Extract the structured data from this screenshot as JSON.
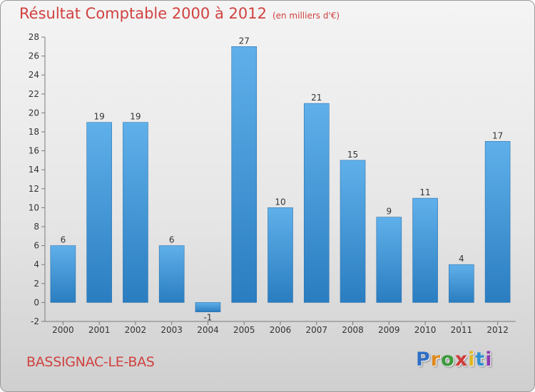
{
  "title": "Résultat Comptable 2000 à 2012",
  "subtitle": "(en milliers d'€)",
  "commune": "BASSIGNAC-LE-BAS",
  "logo": {
    "letters": [
      "P",
      "r",
      "o",
      "x",
      "i",
      "t",
      "i"
    ],
    "colors": [
      "#2f6fc4",
      "#e08a1e",
      "#3a9a3a",
      "#d03a3a",
      "#e0b81e",
      "#2f8fd0",
      "#8a3ab0"
    ]
  },
  "colors": {
    "bar_top": "#5fb0ea",
    "bar_bottom": "#2a7dc0",
    "title": "#d0413f"
  },
  "chart_data": {
    "type": "bar",
    "categories": [
      "2000",
      "2001",
      "2002",
      "2003",
      "2004",
      "2005",
      "2006",
      "2007",
      "2008",
      "2009",
      "2010",
      "2011",
      "2012"
    ],
    "values": [
      6,
      19,
      19,
      6,
      -1,
      27,
      10,
      21,
      15,
      9,
      11,
      4,
      17
    ],
    "ylim": [
      -2,
      28
    ],
    "yticks": [
      -2,
      0,
      2,
      4,
      6,
      8,
      10,
      12,
      14,
      16,
      18,
      20,
      22,
      24,
      26,
      28
    ],
    "grid": false,
    "legend": "none"
  }
}
